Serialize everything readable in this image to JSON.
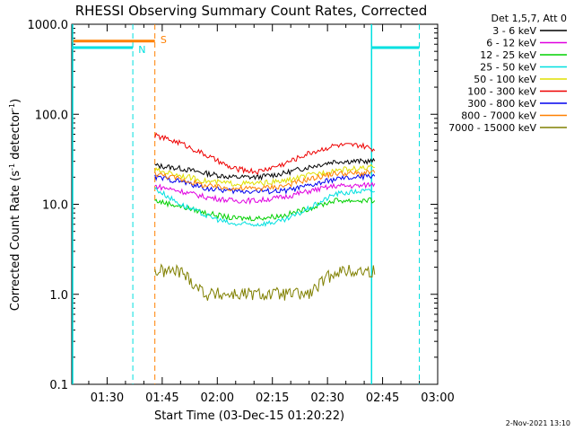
{
  "chart_data": {
    "type": "line",
    "title": "RHESSI Observing Summary Count Rates, Corrected",
    "xlabel": "Start Time (03-Dec-15 01:20:22)",
    "ylabel_main": "Corrected Count Rate (s",
    "ylabel_sup": "-1",
    "ylabel_mid": " detector",
    "ylabel_end": ")",
    "xlim": [
      "01:20:22",
      "03:00:00"
    ],
    "x_ticks": [
      "01:30",
      "01:45",
      "02:00",
      "02:15",
      "02:30",
      "02:45",
      "03:00"
    ],
    "x_tick_minutes": [
      90,
      105,
      120,
      135,
      150,
      165,
      180
    ],
    "x_start_minutes": 80.37,
    "x_end_minutes": 180,
    "yscale": "log",
    "ylim": [
      0.1,
      1000
    ],
    "y_ticks": [
      "0.1",
      "1.0",
      "10.0",
      "100.0",
      "1000.0"
    ],
    "y_tick_values": [
      0.1,
      1,
      10,
      100,
      1000
    ],
    "legend_title": "Det 1,5,7, Att 0",
    "legend_position": "outside-right-top",
    "x": [
      "01:43",
      "01:50",
      "01:57",
      "02:04",
      "02:11",
      "02:18",
      "02:25",
      "02:32",
      "02:39",
      "02:43"
    ],
    "x_minutes": [
      103,
      110,
      117,
      124,
      131,
      138,
      145,
      152,
      159,
      163
    ],
    "series": [
      {
        "name": "3 - 6 keV",
        "color": "#000000",
        "values": [
          27,
          25,
          22,
          20,
          20,
          22,
          26,
          30,
          30,
          30
        ]
      },
      {
        "name": "6 - 12 keV",
        "color": "#e000e0",
        "values": [
          16,
          14,
          12,
          11,
          11,
          12,
          14,
          16,
          16,
          17
        ]
      },
      {
        "name": "12 - 25 keV",
        "color": "#00d000",
        "values": [
          11,
          9.5,
          8,
          7,
          7,
          7.5,
          9,
          11,
          11,
          11
        ]
      },
      {
        "name": "25 - 50 keV",
        "color": "#00e0e0",
        "values": [
          15,
          10,
          7.5,
          6,
          6,
          6.5,
          9,
          13,
          14,
          14
        ]
      },
      {
        "name": "50 - 100 keV",
        "color": "#e0e000",
        "values": [
          24,
          21,
          18,
          17,
          17,
          18,
          21,
          24,
          25,
          26
        ]
      },
      {
        "name": "100 - 300 keV",
        "color": "#ee0000",
        "values": [
          58,
          48,
          35,
          25,
          23,
          28,
          37,
          45,
          45,
          40
        ]
      },
      {
        "name": "300 - 800 keV",
        "color": "#0000ee",
        "values": [
          20,
          18,
          15,
          14,
          14,
          14,
          16,
          19,
          20,
          21
        ]
      },
      {
        "name": "800 - 7000 keV",
        "color": "#ff8000",
        "values": [
          22,
          19,
          16,
          15,
          15,
          16,
          19,
          22,
          22,
          23
        ]
      },
      {
        "name": "7000 - 15000 keV",
        "color": "#808000",
        "values": [
          1.8,
          1.8,
          1.0,
          1.0,
          1.0,
          1.0,
          1.0,
          1.8,
          1.8,
          1.8
        ]
      }
    ],
    "flags": [
      {
        "label": "N",
        "color": "#00e0e0",
        "level": 550,
        "segments": [
          [
            "01:20:22",
            "01:37"
          ],
          [
            "02:42",
            "02:55"
          ]
        ],
        "markers_minutes": [
          97,
          162,
          175
        ]
      },
      {
        "label": "S",
        "color": "#ff8000",
        "level": 650,
        "segments": [
          [
            "01:20:22",
            "01:43"
          ]
        ],
        "markers_minutes": [
          103
        ]
      }
    ],
    "grid": false
  },
  "footer": {
    "timestamp": "2-Nov-2021 13:10"
  }
}
